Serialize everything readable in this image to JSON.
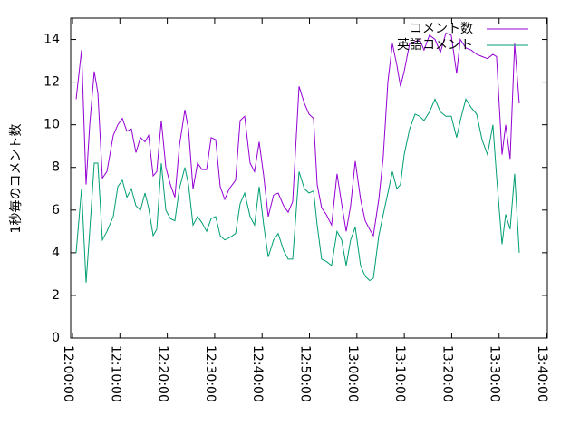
{
  "chart_data": {
    "type": "line",
    "y_label": "1秒毎のコメント数",
    "x": [
      "12:00:46",
      "12:01:55",
      "12:02:52",
      "12:03:38",
      "12:04:35",
      "12:05:21",
      "12:06:19",
      "12:07:16",
      "12:08:36",
      "12:09:34",
      "12:10:31",
      "12:11:28",
      "12:12:26",
      "12:13:23",
      "12:14:20",
      "12:15:18",
      "12:16:03",
      "12:17:01",
      "12:17:47",
      "12:18:44",
      "12:19:41",
      "12:20:39",
      "12:21:36",
      "12:22:33",
      "12:23:42",
      "12:24:28",
      "12:25:26",
      "12:26:23",
      "12:27:20",
      "12:28:18",
      "12:29:15",
      "12:30:12",
      "12:31:10",
      "12:32:07",
      "12:33:04",
      "12:34:25",
      "12:35:22",
      "12:36:19",
      "12:37:28",
      "12:38:25",
      "12:39:23",
      "12:40:20",
      "12:41:18",
      "12:42:26",
      "12:43:24",
      "12:44:33",
      "12:45:30",
      "12:46:27",
      "12:47:48",
      "12:48:56",
      "12:49:54",
      "12:50:51",
      "12:51:37",
      "12:52:34",
      "12:53:32",
      "12:54:40",
      "12:55:49",
      "12:56:47",
      "12:57:44",
      "12:58:41",
      "12:59:39",
      "13:00:47",
      "13:01:45",
      "13:02:42",
      "13:03:28",
      "13:04:37",
      "13:05:34",
      "13:06:32",
      "13:07:29",
      "13:08:26",
      "13:09:12",
      "13:09:58",
      "13:11:07",
      "13:12:16",
      "13:13:13",
      "13:14:10",
      "13:15:19",
      "13:16:28",
      "13:17:37",
      "13:18:46",
      "13:19:54",
      "13:21:03",
      "13:21:49",
      "13:22:58",
      "13:24:07",
      "13:25:16",
      "13:26:24",
      "13:27:33",
      "13:28:42",
      "13:29:28",
      "13:30:37",
      "13:31:23",
      "13:32:20",
      "13:33:17",
      "13:34:15"
    ],
    "series": [
      {
        "name": "コメント数",
        "color": "#9400d3",
        "values": [
          11.2,
          13.5,
          7.2,
          10,
          12.5,
          11.5,
          7.5,
          7.8,
          9.5,
          10.0,
          10.3,
          9.7,
          9.8,
          8.7,
          9.4,
          9.2,
          9.5,
          7.6,
          7.8,
          10.2,
          8.0,
          7.2,
          6.6,
          9,
          10.7,
          9.8,
          7.0,
          8.2,
          7.9,
          7.9,
          9.4,
          9.3,
          7.1,
          6.5,
          7.0,
          7.4,
          10.2,
          10.4,
          8.2,
          7.8,
          9.2,
          7.6,
          5.7,
          6.7,
          6.8,
          6.2,
          5.9,
          6.4,
          11.8,
          11,
          10.5,
          10.3,
          7.2,
          6.1,
          5.8,
          5.3,
          7.7,
          6.3,
          5.0,
          6.2,
          8.3,
          6.5,
          5.5,
          5.1,
          4.8,
          6.5,
          8.5,
          12,
          13.8,
          12.8,
          11.8,
          12.5,
          13.8,
          13.9,
          14,
          13.5,
          14.2,
          14,
          13.4,
          14.3,
          14.2,
          12.4,
          14,
          13.6,
          13.5,
          13.3,
          13.2,
          13.1,
          13.3,
          13.2,
          8.6,
          10,
          8.4,
          13.8,
          11
        ]
      },
      {
        "name": "英語コメント",
        "color": "#009e73",
        "values": [
          4.0,
          7.0,
          2.6,
          5,
          8.2,
          8.2,
          4.6,
          5.0,
          5.7,
          7.1,
          7.4,
          6.6,
          7.0,
          6.2,
          6.0,
          6.8,
          6.1,
          4.8,
          5.1,
          8.2,
          6.0,
          5.6,
          5.5,
          7.0,
          8.0,
          7.2,
          5.3,
          5.7,
          5.4,
          5.0,
          5.6,
          5.7,
          4.8,
          4.6,
          4.7,
          4.9,
          6.3,
          6.8,
          5.7,
          5.3,
          7.1,
          5.3,
          3.8,
          4.6,
          4.9,
          4.1,
          3.7,
          3.7,
          7.8,
          7.0,
          6.8,
          6.9,
          5.3,
          3.7,
          3.6,
          3.4,
          5.0,
          4.6,
          3.4,
          4.6,
          5.2,
          3.4,
          2.9,
          2.7,
          2.8,
          4.8,
          5.8,
          6.8,
          7.8,
          7.0,
          7.2,
          8.6,
          9.8,
          10.5,
          10.4,
          10.2,
          10.6,
          11.2,
          10.6,
          10.4,
          10.4,
          9.4,
          10.2,
          11.2,
          10.8,
          10.5,
          9.3,
          8.6,
          10.0,
          7.6,
          4.4,
          5.8,
          5.1,
          7.7,
          4.0
        ]
      }
    ],
    "xlim": [
      "11:59:37",
      "13:40:11"
    ],
    "xticks": [
      "12:00:00",
      "12:10:00",
      "12:20:00",
      "12:30:00",
      "12:40:00",
      "12:50:00",
      "13:00:00",
      "13:10:00",
      "13:20:00",
      "13:30:00",
      "13:40:00"
    ],
    "ylim": [
      0,
      15
    ],
    "yticks": [
      0,
      2,
      4,
      6,
      8,
      10,
      12,
      14
    ],
    "legend": "top-right"
  }
}
